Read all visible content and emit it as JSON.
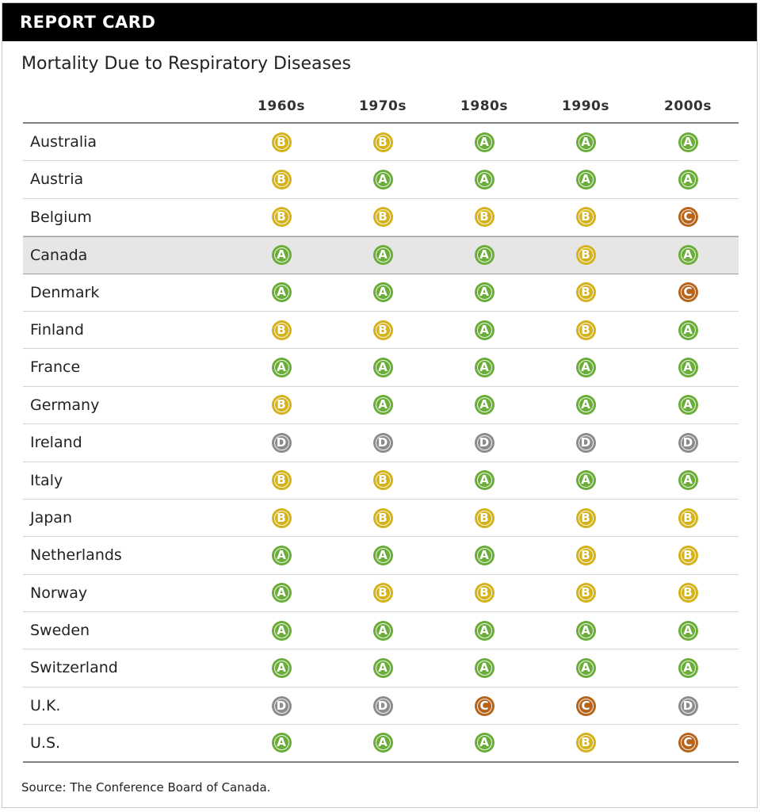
{
  "header": {
    "title": "REPORT CARD"
  },
  "subtitle": "Mortality Due to Respiratory Diseases",
  "source": "Source: The Conference Board of Canada.",
  "colors": {
    "A": "#6aad38",
    "B": "#d4b21a",
    "C": "#b7631a",
    "D": "#8c8c8c"
  },
  "highlighted_row": "Canada",
  "chart_data": {
    "type": "table",
    "title": "Mortality Due to Respiratory Diseases",
    "columns": [
      "1960s",
      "1970s",
      "1980s",
      "1990s",
      "2000s"
    ],
    "rows": [
      {
        "country": "Australia",
        "grades": [
          "B",
          "B",
          "A",
          "A",
          "A"
        ]
      },
      {
        "country": "Austria",
        "grades": [
          "B",
          "A",
          "A",
          "A",
          "A"
        ]
      },
      {
        "country": "Belgium",
        "grades": [
          "B",
          "B",
          "B",
          "B",
          "C"
        ]
      },
      {
        "country": "Canada",
        "grades": [
          "A",
          "A",
          "A",
          "B",
          "A"
        ]
      },
      {
        "country": "Denmark",
        "grades": [
          "A",
          "A",
          "A",
          "B",
          "C"
        ]
      },
      {
        "country": "Finland",
        "grades": [
          "B",
          "B",
          "A",
          "B",
          "A"
        ]
      },
      {
        "country": "France",
        "grades": [
          "A",
          "A",
          "A",
          "A",
          "A"
        ]
      },
      {
        "country": "Germany",
        "grades": [
          "B",
          "A",
          "A",
          "A",
          "A"
        ]
      },
      {
        "country": "Ireland",
        "grades": [
          "D",
          "D",
          "D",
          "D",
          "D"
        ]
      },
      {
        "country": "Italy",
        "grades": [
          "B",
          "B",
          "A",
          "A",
          "A"
        ]
      },
      {
        "country": "Japan",
        "grades": [
          "B",
          "B",
          "B",
          "B",
          "B"
        ]
      },
      {
        "country": "Netherlands",
        "grades": [
          "A",
          "A",
          "A",
          "B",
          "B"
        ]
      },
      {
        "country": "Norway",
        "grades": [
          "A",
          "B",
          "B",
          "B",
          "B"
        ]
      },
      {
        "country": "Sweden",
        "grades": [
          "A",
          "A",
          "A",
          "A",
          "A"
        ]
      },
      {
        "country": "Switzerland",
        "grades": [
          "A",
          "A",
          "A",
          "A",
          "A"
        ]
      },
      {
        "country": "U.K.",
        "grades": [
          "D",
          "D",
          "C",
          "C",
          "D"
        ]
      },
      {
        "country": "U.S.",
        "grades": [
          "A",
          "A",
          "A",
          "B",
          "C"
        ]
      }
    ]
  }
}
